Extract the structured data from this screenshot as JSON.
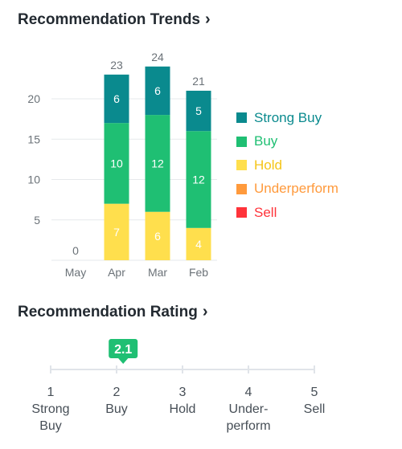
{
  "trends": {
    "title": "Recommendation Trends",
    "chevron": "chevron-right-icon"
  },
  "rating": {
    "title": "Recommendation Rating",
    "chevron": "chevron-right-icon",
    "value": "2.1",
    "value_num": 2.1
  },
  "chart_data": {
    "type": "bar",
    "stacked": true,
    "categories": [
      "May",
      "Apr",
      "Mar",
      "Feb"
    ],
    "series": [
      {
        "name": "Strong Buy",
        "color": "#0a8a8e",
        "values": [
          0,
          6,
          6,
          5
        ]
      },
      {
        "name": "Buy",
        "color": "#1fbf73",
        "values": [
          0,
          10,
          12,
          12
        ]
      },
      {
        "name": "Hold",
        "color": "#ffdf4d",
        "values": [
          0,
          7,
          6,
          4
        ]
      },
      {
        "name": "Underperform",
        "color": "#ff9a3c",
        "values": [
          0,
          0,
          0,
          0
        ]
      },
      {
        "name": "Sell",
        "color": "#ff333a",
        "values": [
          0,
          0,
          0,
          0
        ]
      }
    ],
    "totals": [
      0,
      23,
      24,
      21
    ],
    "yticks": [
      5,
      10,
      15,
      20
    ],
    "ylim": [
      0,
      24
    ],
    "grid": true,
    "legend": "right"
  },
  "rating_scale": [
    {
      "num": "1",
      "label": "Strong\nBuy"
    },
    {
      "num": "2",
      "label": "Buy"
    },
    {
      "num": "3",
      "label": "Hold"
    },
    {
      "num": "4",
      "label": "Under-\nperform"
    },
    {
      "num": "5",
      "label": "Sell"
    }
  ]
}
